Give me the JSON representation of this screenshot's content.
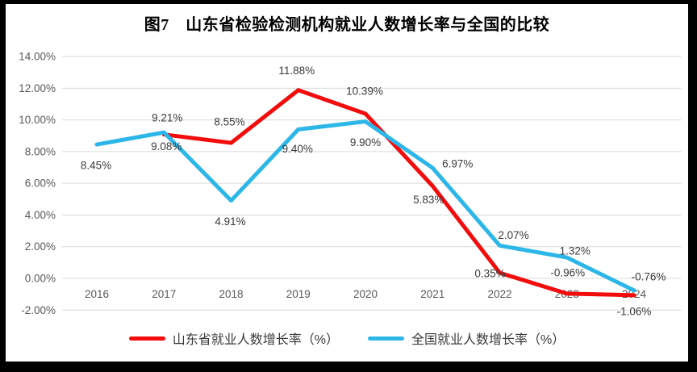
{
  "frame": {
    "border_color": "#000000",
    "background": "#ffffff"
  },
  "chart_data": {
    "type": "line",
    "title": "图7　山东省检验检测机构就业人数增长率与全国的比较",
    "categories": [
      "2016",
      "2017",
      "2018",
      "2019",
      "2020",
      "2021",
      "2022",
      "2023",
      "2024"
    ],
    "series": [
      {
        "name": "山东省就业人数增长率（%）",
        "color": "#f20c0c",
        "values": [
          null,
          9.08,
          8.55,
          11.88,
          10.39,
          5.83,
          0.35,
          -0.96,
          -1.06
        ],
        "labels": [
          null,
          "9.08%",
          "8.55%",
          "11.88%",
          "10.39%",
          "5.83%",
          "0.35%",
          "-0.96%",
          "-1.06%"
        ],
        "label_offsets": [
          [
            0,
            0
          ],
          [
            3,
            15
          ],
          [
            -2,
            -26
          ],
          [
            -2,
            -24
          ],
          [
            -1,
            -28
          ],
          [
            -5,
            17
          ],
          [
            -12,
            1
          ],
          [
            1,
            -26
          ],
          [
            0,
            20
          ]
        ]
      },
      {
        "name": "全国就业人数增长率（%）",
        "color": "#2cb7e8",
        "values": [
          8.45,
          9.21,
          4.91,
          9.4,
          9.9,
          6.97,
          2.07,
          1.32,
          -0.76
        ],
        "labels": [
          "8.45%",
          "9.21%",
          "4.91%",
          "9.40%",
          "9.90%",
          "6.97%",
          "2.07%",
          "1.32%",
          "-0.76%"
        ],
        "label_offsets": [
          [
            -1,
            26
          ],
          [
            4,
            -18
          ],
          [
            -1,
            26
          ],
          [
            -1,
            24
          ],
          [
            0,
            26
          ],
          [
            31,
            -5
          ],
          [
            17,
            -13
          ],
          [
            10,
            -8
          ],
          [
            18,
            -17
          ]
        ]
      }
    ],
    "y_axis": {
      "min": -2,
      "max": 14,
      "step": 2,
      "tick_labels": [
        "14.00%",
        "12.00%",
        "10.00%",
        "8.00%",
        "6.00%",
        "4.00%",
        "2.00%",
        "0.00%",
        "-2.00%"
      ]
    },
    "x_axis": {
      "tick_labels": [
        "2016",
        "2017",
        "2018",
        "2019",
        "2020",
        "2021",
        "2022",
        "2023",
        "2024"
      ]
    },
    "grid": true,
    "legend_position": "bottom",
    "colors": {
      "gridline": "#d9d9d9",
      "axis_text": "#595959",
      "data_label": "#3a3a3a",
      "title_text": "#000000",
      "legend_text": "#3a3a3a"
    }
  }
}
